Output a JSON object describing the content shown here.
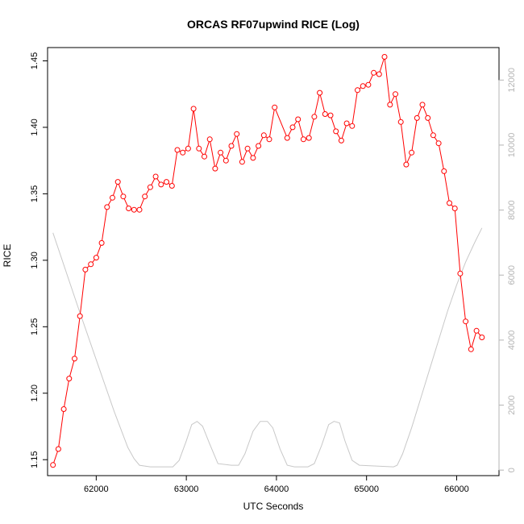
{
  "chart_data": {
    "type": "line",
    "title": "ORCAS RF07upwind RICE (Log)",
    "xlabel": "UTC Seconds",
    "ylabel": "RICE",
    "xlim": [
      61460,
      66470
    ],
    "ylim": [
      1.138,
      1.46
    ],
    "y2lim": [
      -170,
      13000
    ],
    "x_ticks": [
      62000,
      63000,
      64000,
      65000,
      66000
    ],
    "y_ticks": [
      1.15,
      1.2,
      1.25,
      1.3,
      1.35,
      1.4,
      1.45
    ],
    "y_tick_labels": [
      "1.15",
      "1.20",
      "1.25",
      "1.30",
      "1.35",
      "1.40",
      "1.45"
    ],
    "y2_ticks": [
      0,
      2000,
      4000,
      6000,
      8000,
      10000,
      12000
    ],
    "colors": {
      "rice": "#ff0000",
      "altitude": "#c8c8c8",
      "axis": "#000000",
      "axis2": "#b4b4b4"
    },
    "series": [
      {
        "axis": "left",
        "style": "line+points",
        "x": [
          61520,
          61580,
          61640,
          61700,
          61760,
          61820,
          61880,
          61940,
          62000,
          62060,
          62120,
          62180,
          62240,
          62300,
          62360,
          62420,
          62480,
          62540,
          62600,
          62660,
          62720,
          62780,
          62840,
          62900,
          62960,
          63020,
          63080,
          63140,
          63200,
          63260,
          63320,
          63380,
          63440,
          63500,
          63560,
          63620,
          63680,
          63740,
          63800,
          63860,
          63920,
          63980,
          64120,
          64180,
          64240,
          64300,
          64360,
          64420,
          64480,
          64540,
          64600,
          64660,
          64720,
          64780,
          64840,
          64900,
          64960,
          65020,
          65080,
          65140,
          65200,
          65260,
          65320,
          65380,
          65440,
          65500,
          65560,
          65620,
          65680,
          65740,
          65800,
          65860,
          65920,
          65980,
          66040,
          66100,
          66160,
          66220,
          66280
        ],
        "y": [
          1.146,
          1.158,
          1.188,
          1.211,
          1.226,
          1.258,
          1.293,
          1.297,
          1.302,
          1.313,
          1.34,
          1.347,
          1.359,
          1.348,
          1.339,
          1.338,
          1.338,
          1.348,
          1.355,
          1.363,
          1.357,
          1.359,
          1.356,
          1.383,
          1.381,
          1.384,
          1.414,
          1.384,
          1.378,
          1.391,
          1.369,
          1.381,
          1.375,
          1.386,
          1.395,
          1.374,
          1.384,
          1.377,
          1.386,
          1.394,
          1.391,
          1.415,
          1.392,
          1.4,
          1.406,
          1.391,
          1.392,
          1.408,
          1.426,
          1.41,
          1.409,
          1.397,
          1.39,
          1.403,
          1.401,
          1.428,
          1.431,
          1.432,
          1.441,
          1.44,
          1.453,
          1.417,
          1.425,
          1.404,
          1.372,
          1.381,
          1.407,
          1.417,
          1.407,
          1.394,
          1.388,
          1.367,
          1.343,
          1.339,
          1.29,
          1.254,
          1.233,
          1.247,
          1.242
        ]
      },
      {
        "axis": "right",
        "style": "line",
        "x": [
          61520,
          61800,
          62050,
          62200,
          62350,
          62420,
          62480,
          62600,
          62850,
          62920,
          63000,
          63060,
          63120,
          63180,
          63260,
          63350,
          63500,
          63580,
          63650,
          63740,
          63820,
          63900,
          63960,
          64040,
          64120,
          64200,
          64350,
          64420,
          64500,
          64580,
          64640,
          64700,
          64760,
          64840,
          64920,
          65300,
          65340,
          65400,
          65500,
          65600,
          65700,
          65800,
          65900,
          66000,
          66100,
          66200,
          66280
        ],
        "y": [
          7300,
          5000,
          3000,
          1800,
          700,
          350,
          150,
          100,
          100,
          300,
          900,
          1400,
          1500,
          1350,
          800,
          200,
          150,
          150,
          500,
          1200,
          1500,
          1500,
          1300,
          650,
          150,
          100,
          100,
          200,
          750,
          1400,
          1500,
          1450,
          900,
          300,
          150,
          100,
          150,
          500,
          1300,
          2200,
          3100,
          4000,
          4900,
          5700,
          6400,
          7000,
          7450
        ]
      }
    ]
  }
}
